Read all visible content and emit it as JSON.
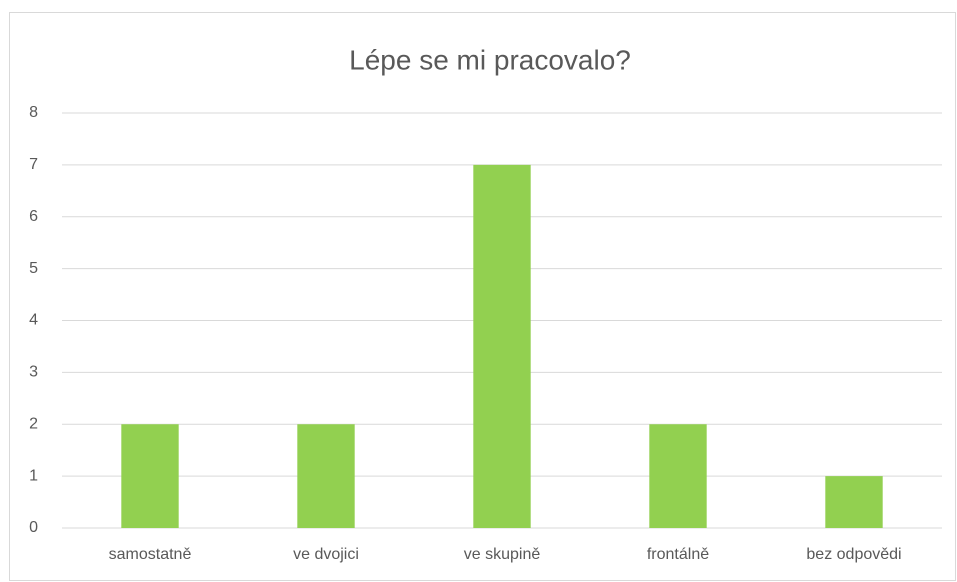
{
  "chart_data": {
    "type": "bar",
    "title": "Lépe se mi pracovalo?",
    "categories": [
      "samostatně",
      "ve dvojici",
      "ve skupině",
      "frontálně",
      "bez odpovědi"
    ],
    "values": [
      2,
      2,
      7,
      2,
      1
    ],
    "color": "#92d050",
    "ylim": [
      0,
      8
    ],
    "yticks": [
      0,
      1,
      2,
      3,
      4,
      5,
      6,
      7,
      8
    ],
    "grid": true
  }
}
